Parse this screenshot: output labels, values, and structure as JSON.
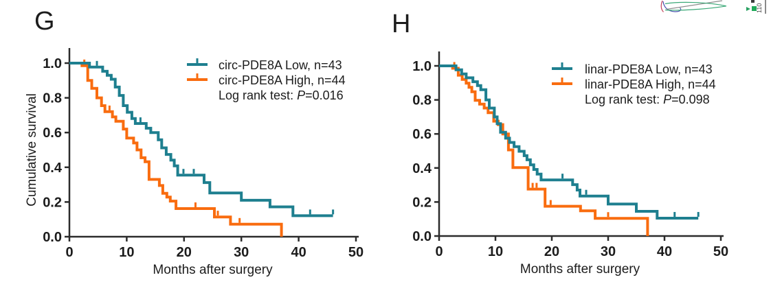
{
  "figure": {
    "background": "#ffffff",
    "fragment": {
      "rotated_label": "110"
    }
  },
  "chart_data": [
    {
      "panel": "G",
      "type": "line",
      "subtype": "kaplan-meier-step",
      "title": "",
      "xlabel": "Months after surgery",
      "ylabel": "Cumulative survival",
      "xlim": [
        0,
        50
      ],
      "ylim": [
        0.0,
        1.0
      ],
      "grid": false,
      "legend_position": "top-right-inside",
      "xticks": [
        {
          "v": 0,
          "label": "0"
        },
        {
          "v": 10,
          "label": "10"
        },
        {
          "v": 20,
          "label": "20"
        },
        {
          "v": 30,
          "label": "30"
        },
        {
          "v": 40,
          "label": "40"
        },
        {
          "v": 50,
          "label": "50"
        }
      ],
      "yticks": [
        {
          "v": 0.0,
          "label": "0.0"
        },
        {
          "v": 0.2,
          "label": "0.2"
        },
        {
          "v": 0.4,
          "label": "0.4"
        },
        {
          "v": 0.6,
          "label": "0.6"
        },
        {
          "v": 0.8,
          "label": "0.8"
        },
        {
          "v": 1.0,
          "label": "1.0"
        }
      ],
      "log_rank": {
        "prefix": "Log rank test: ",
        "p_symbol": "P",
        "value": "=0.016"
      },
      "series": [
        {
          "name": "circ-PDE8A Low, n=43",
          "color": "#1e7f8f",
          "steps": [
            [
              0,
              1.0
            ],
            [
              3.5,
              0.977
            ],
            [
              5.8,
              0.953
            ],
            [
              6.6,
              0.93
            ],
            [
              7.3,
              0.907
            ],
            [
              8.0,
              0.862
            ],
            [
              8.7,
              0.814
            ],
            [
              9.4,
              0.755
            ],
            [
              10.1,
              0.717
            ],
            [
              10.9,
              0.681
            ],
            [
              11.5,
              0.652
            ],
            [
              13.4,
              0.625
            ],
            [
              14.2,
              0.6
            ],
            [
              15.5,
              0.558
            ],
            [
              16.1,
              0.512
            ],
            [
              16.9,
              0.474
            ],
            [
              17.7,
              0.441
            ],
            [
              18.3,
              0.408
            ],
            [
              18.9,
              0.355
            ],
            [
              23.5,
              0.312
            ],
            [
              24.5,
              0.252
            ],
            [
              30,
              0.21
            ],
            [
              35,
              0.172
            ],
            [
              39,
              0.121
            ],
            [
              46,
              0.121
            ]
          ],
          "censor_ticks": [
            [
              4.8,
              0.977
            ],
            [
              12.4,
              0.652
            ],
            [
              19.9,
              0.355
            ],
            [
              21.7,
              0.355
            ],
            [
              42,
              0.121
            ],
            [
              46,
              0.121
            ]
          ]
        },
        {
          "name": "circ-PDE8A High, n=44",
          "color": "#f96c0f",
          "steps": [
            [
              0,
              1.0
            ],
            [
              2.2,
              0.985
            ],
            [
              3.2,
              0.9
            ],
            [
              3.9,
              0.855
            ],
            [
              4.8,
              0.8
            ],
            [
              5.6,
              0.755
            ],
            [
              6.2,
              0.72
            ],
            [
              7.5,
              0.69
            ],
            [
              8.1,
              0.665
            ],
            [
              9.4,
              0.62
            ],
            [
              10.0,
              0.568
            ],
            [
              11.2,
              0.54
            ],
            [
              11.8,
              0.5
            ],
            [
              12.5,
              0.455
            ],
            [
              13.2,
              0.432
            ],
            [
              13.9,
              0.33
            ],
            [
              15.7,
              0.295
            ],
            [
              16.3,
              0.25
            ],
            [
              17.0,
              0.228
            ],
            [
              17.6,
              0.205
            ],
            [
              18.6,
              0.162
            ],
            [
              25.3,
              0.114
            ],
            [
              28.1,
              0.072
            ],
            [
              37,
              0.0
            ]
          ],
          "censor_ticks": [
            [
              2.6,
              0.985
            ],
            [
              7.0,
              0.72
            ],
            [
              22,
              0.162
            ],
            [
              25.9,
              0.114
            ],
            [
              29.7,
              0.072
            ]
          ]
        }
      ]
    },
    {
      "panel": "H",
      "type": "line",
      "subtype": "kaplan-meier-step",
      "title": "",
      "xlabel": "Months after surgery",
      "ylabel": "",
      "xlim": [
        0,
        50
      ],
      "ylim": [
        0.0,
        1.0
      ],
      "grid": false,
      "legend_position": "top-right-inside",
      "xticks": [
        {
          "v": 0,
          "label": "0"
        },
        {
          "v": 10,
          "label": "10"
        },
        {
          "v": 20,
          "label": "20"
        },
        {
          "v": 30,
          "label": "30"
        },
        {
          "v": 40,
          "label": "40"
        },
        {
          "v": 50,
          "label": "50"
        }
      ],
      "yticks": [
        {
          "v": 0.0,
          "label": "0.0"
        },
        {
          "v": 0.2,
          "label": "0.2"
        },
        {
          "v": 0.4,
          "label": "0.4"
        },
        {
          "v": 0.6,
          "label": "0.6"
        },
        {
          "v": 0.8,
          "label": "0.8"
        },
        {
          "v": 1.0,
          "label": "1.0"
        }
      ],
      "log_rank": {
        "prefix": "Log rank test: ",
        "p_symbol": "P",
        "value": "=0.098"
      },
      "series": [
        {
          "name": "linar-PDE8A Low, n=43",
          "color": "#1e7f8f",
          "steps": [
            [
              0,
              1.0
            ],
            [
              3.0,
              0.977
            ],
            [
              4.0,
              0.953
            ],
            [
              4.8,
              0.93
            ],
            [
              6.0,
              0.907
            ],
            [
              6.8,
              0.884
            ],
            [
              7.4,
              0.86
            ],
            [
              8.3,
              0.8
            ],
            [
              8.9,
              0.752
            ],
            [
              9.8,
              0.7
            ],
            [
              10.3,
              0.66
            ],
            [
              10.9,
              0.61
            ],
            [
              11.8,
              0.575
            ],
            [
              12.5,
              0.55
            ],
            [
              13.3,
              0.525
            ],
            [
              14.2,
              0.498
            ],
            [
              15.1,
              0.472
            ],
            [
              15.6,
              0.448
            ],
            [
              16.2,
              0.418
            ],
            [
              16.8,
              0.391
            ],
            [
              17.4,
              0.364
            ],
            [
              18.1,
              0.33
            ],
            [
              23.7,
              0.302
            ],
            [
              24.5,
              0.27
            ],
            [
              25.0,
              0.235
            ],
            [
              30,
              0.188
            ],
            [
              35,
              0.145
            ],
            [
              38.7,
              0.105
            ],
            [
              46,
              0.105
            ]
          ],
          "censor_ticks": [
            [
              21.9,
              0.33
            ],
            [
              26.1,
              0.235
            ],
            [
              41.8,
              0.105
            ],
            [
              46,
              0.105
            ]
          ]
        },
        {
          "name": "linar-PDE8A High, n=44",
          "color": "#f96c0f",
          "steps": [
            [
              0,
              1.0
            ],
            [
              2.4,
              0.986
            ],
            [
              3.4,
              0.945
            ],
            [
              4.1,
              0.92
            ],
            [
              4.8,
              0.898
            ],
            [
              5.3,
              0.874
            ],
            [
              5.8,
              0.848
            ],
            [
              6.4,
              0.797
            ],
            [
              7.2,
              0.775
            ],
            [
              8.0,
              0.752
            ],
            [
              8.7,
              0.725
            ],
            [
              9.7,
              0.675
            ],
            [
              10.5,
              0.655
            ],
            [
              11.3,
              0.6
            ],
            [
              12.3,
              0.506
            ],
            [
              13.1,
              0.402
            ],
            [
              15.8,
              0.276
            ],
            [
              18.8,
              0.175
            ],
            [
              25.1,
              0.148
            ],
            [
              27.7,
              0.104
            ],
            [
              37,
              0.0
            ]
          ],
          "censor_ticks": [
            [
              2.7,
              0.986
            ],
            [
              16.6,
              0.276
            ],
            [
              17.3,
              0.276
            ],
            [
              19.8,
              0.175
            ],
            [
              30,
              0.104
            ]
          ]
        }
      ]
    }
  ]
}
